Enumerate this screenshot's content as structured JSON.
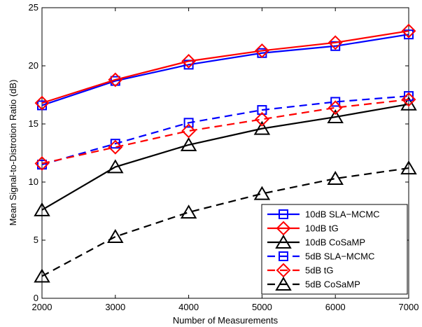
{
  "chart_data": {
    "type": "line",
    "title": "",
    "xlabel": "Number of Measurements",
    "ylabel": "Mean Signal-to-Distrotion Ratio (dB)",
    "xlim": [
      2000,
      7000
    ],
    "ylim": [
      0,
      25
    ],
    "xticks": [
      "2000",
      "3000",
      "4000",
      "5000",
      "6000",
      "7000"
    ],
    "yticks": [
      "0",
      "5",
      "10",
      "15",
      "20",
      "25"
    ],
    "x": [
      2000,
      3000,
      4000,
      5000,
      6000,
      7000
    ],
    "grid": false,
    "legend_position": "bottom-right",
    "series": [
      {
        "name": "10dB SLA−MCMC",
        "color": "#0000ff",
        "marker": "square",
        "dash": "solid",
        "values": [
          16.6,
          18.7,
          20.1,
          21.1,
          21.7,
          22.7
        ]
      },
      {
        "name": "10dB tG",
        "color": "#ff0000",
        "marker": "diamond",
        "dash": "solid",
        "values": [
          16.8,
          18.8,
          20.4,
          21.3,
          22.0,
          23.0
        ]
      },
      {
        "name": "10dB CoSaMP",
        "color": "#000000",
        "marker": "triangle",
        "dash": "solid",
        "values": [
          7.6,
          11.3,
          13.2,
          14.6,
          15.6,
          16.7
        ]
      },
      {
        "name": "5dB SLA−MCMC",
        "color": "#0000ff",
        "marker": "square",
        "dash": "dashed",
        "values": [
          11.5,
          13.3,
          15.1,
          16.2,
          16.9,
          17.4
        ]
      },
      {
        "name": "5dB tG",
        "color": "#ff0000",
        "marker": "diamond",
        "dash": "dashed",
        "values": [
          11.6,
          13.0,
          14.4,
          15.4,
          16.4,
          17.1
        ]
      },
      {
        "name": "5dB CoSaMP",
        "color": "#000000",
        "marker": "triangle",
        "dash": "dashed",
        "values": [
          1.9,
          5.3,
          7.4,
          9.0,
          10.3,
          11.2
        ]
      }
    ]
  }
}
